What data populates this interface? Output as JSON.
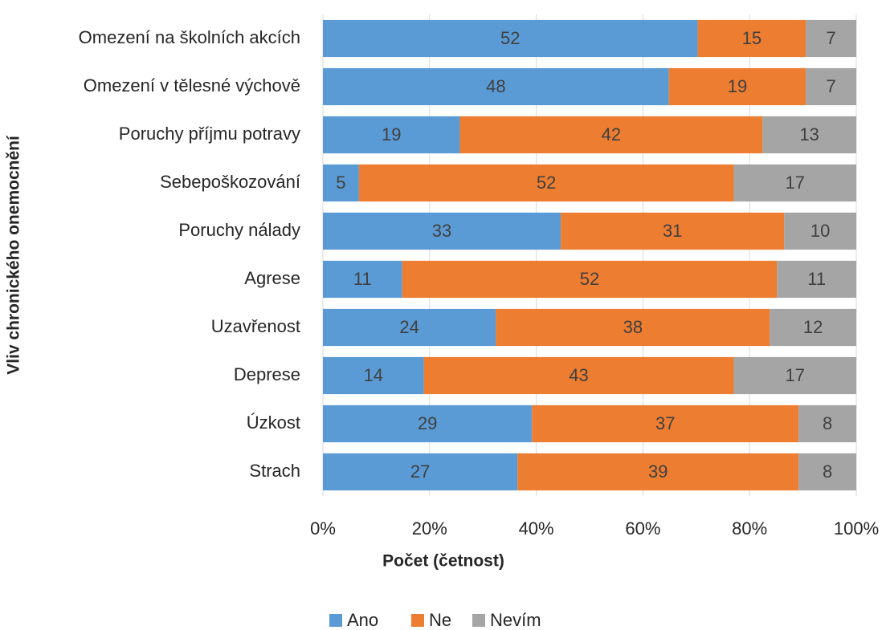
{
  "chart_data": {
    "type": "bar",
    "orientation": "horizontal",
    "stacked": "percent",
    "x_label": "Počet (četnost)",
    "y_label": "Vliv chronického onemocnění",
    "categories": [
      "Omezení na školních akcích",
      "Omezení v tělesné výchově",
      "Poruchy příjmu potravy",
      "Sebepoškozování",
      "Poruchy nálady",
      "Agrese",
      "Uzavřenost",
      "Deprese",
      "Úzkost",
      "Strach"
    ],
    "series": [
      {
        "name": "Ano",
        "color": "#5b9bd5",
        "values": [
          52,
          48,
          19,
          5,
          33,
          11,
          24,
          14,
          29,
          27
        ]
      },
      {
        "name": "Ne",
        "color": "#ed7d31",
        "values": [
          15,
          19,
          42,
          52,
          31,
          52,
          38,
          43,
          37,
          39
        ]
      },
      {
        "name": "Nevím",
        "color": "#a5a5a5",
        "values": [
          7,
          7,
          13,
          17,
          10,
          11,
          12,
          17,
          8,
          8
        ]
      }
    ],
    "xlim": [
      0,
      100
    ],
    "xticks": [
      {
        "value": 0,
        "label": "0%"
      },
      {
        "value": 20,
        "label": "20%"
      },
      {
        "value": 40,
        "label": "40%"
      },
      {
        "value": 60,
        "label": "60%"
      },
      {
        "value": 80,
        "label": "80%"
      },
      {
        "value": 100,
        "label": "100%"
      }
    ],
    "grid": true,
    "legend": "bottom"
  }
}
